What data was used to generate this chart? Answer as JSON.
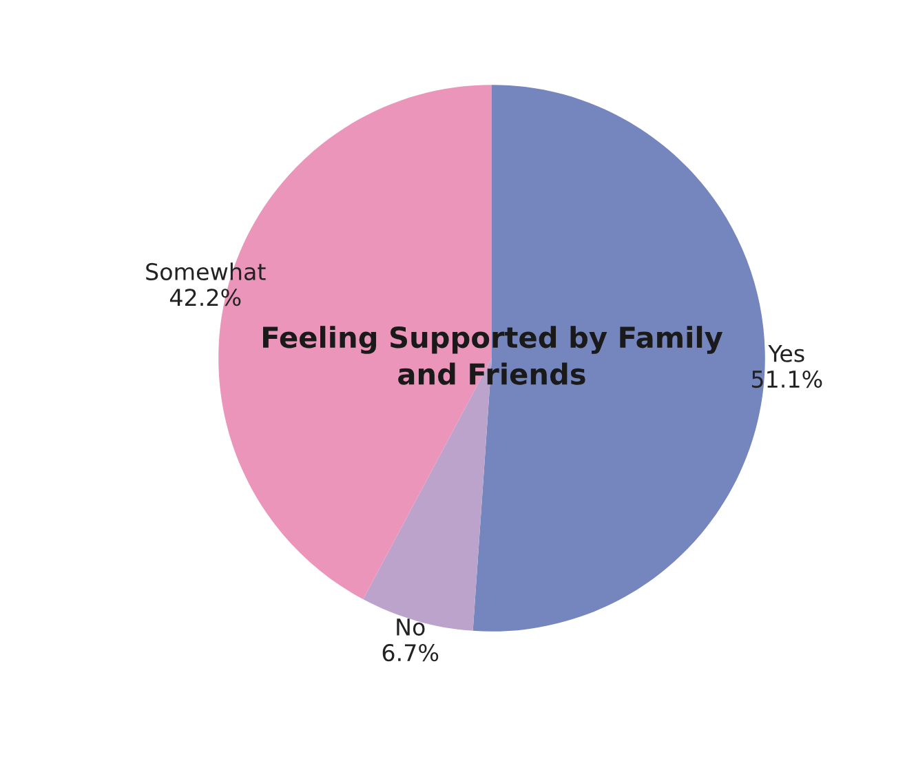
{
  "chart_data": {
    "type": "pie",
    "title": "Feeling Supported by Family and Friends",
    "categories": [
      "Yes",
      "No",
      "Somewhat"
    ],
    "values": [
      51.1,
      6.7,
      42.2
    ],
    "value_labels": [
      "51.1%",
      "6.7%",
      "42.2%"
    ],
    "colors": [
      "#7585bd",
      "#bba3cb",
      "#ea95b9"
    ],
    "legend": false
  }
}
